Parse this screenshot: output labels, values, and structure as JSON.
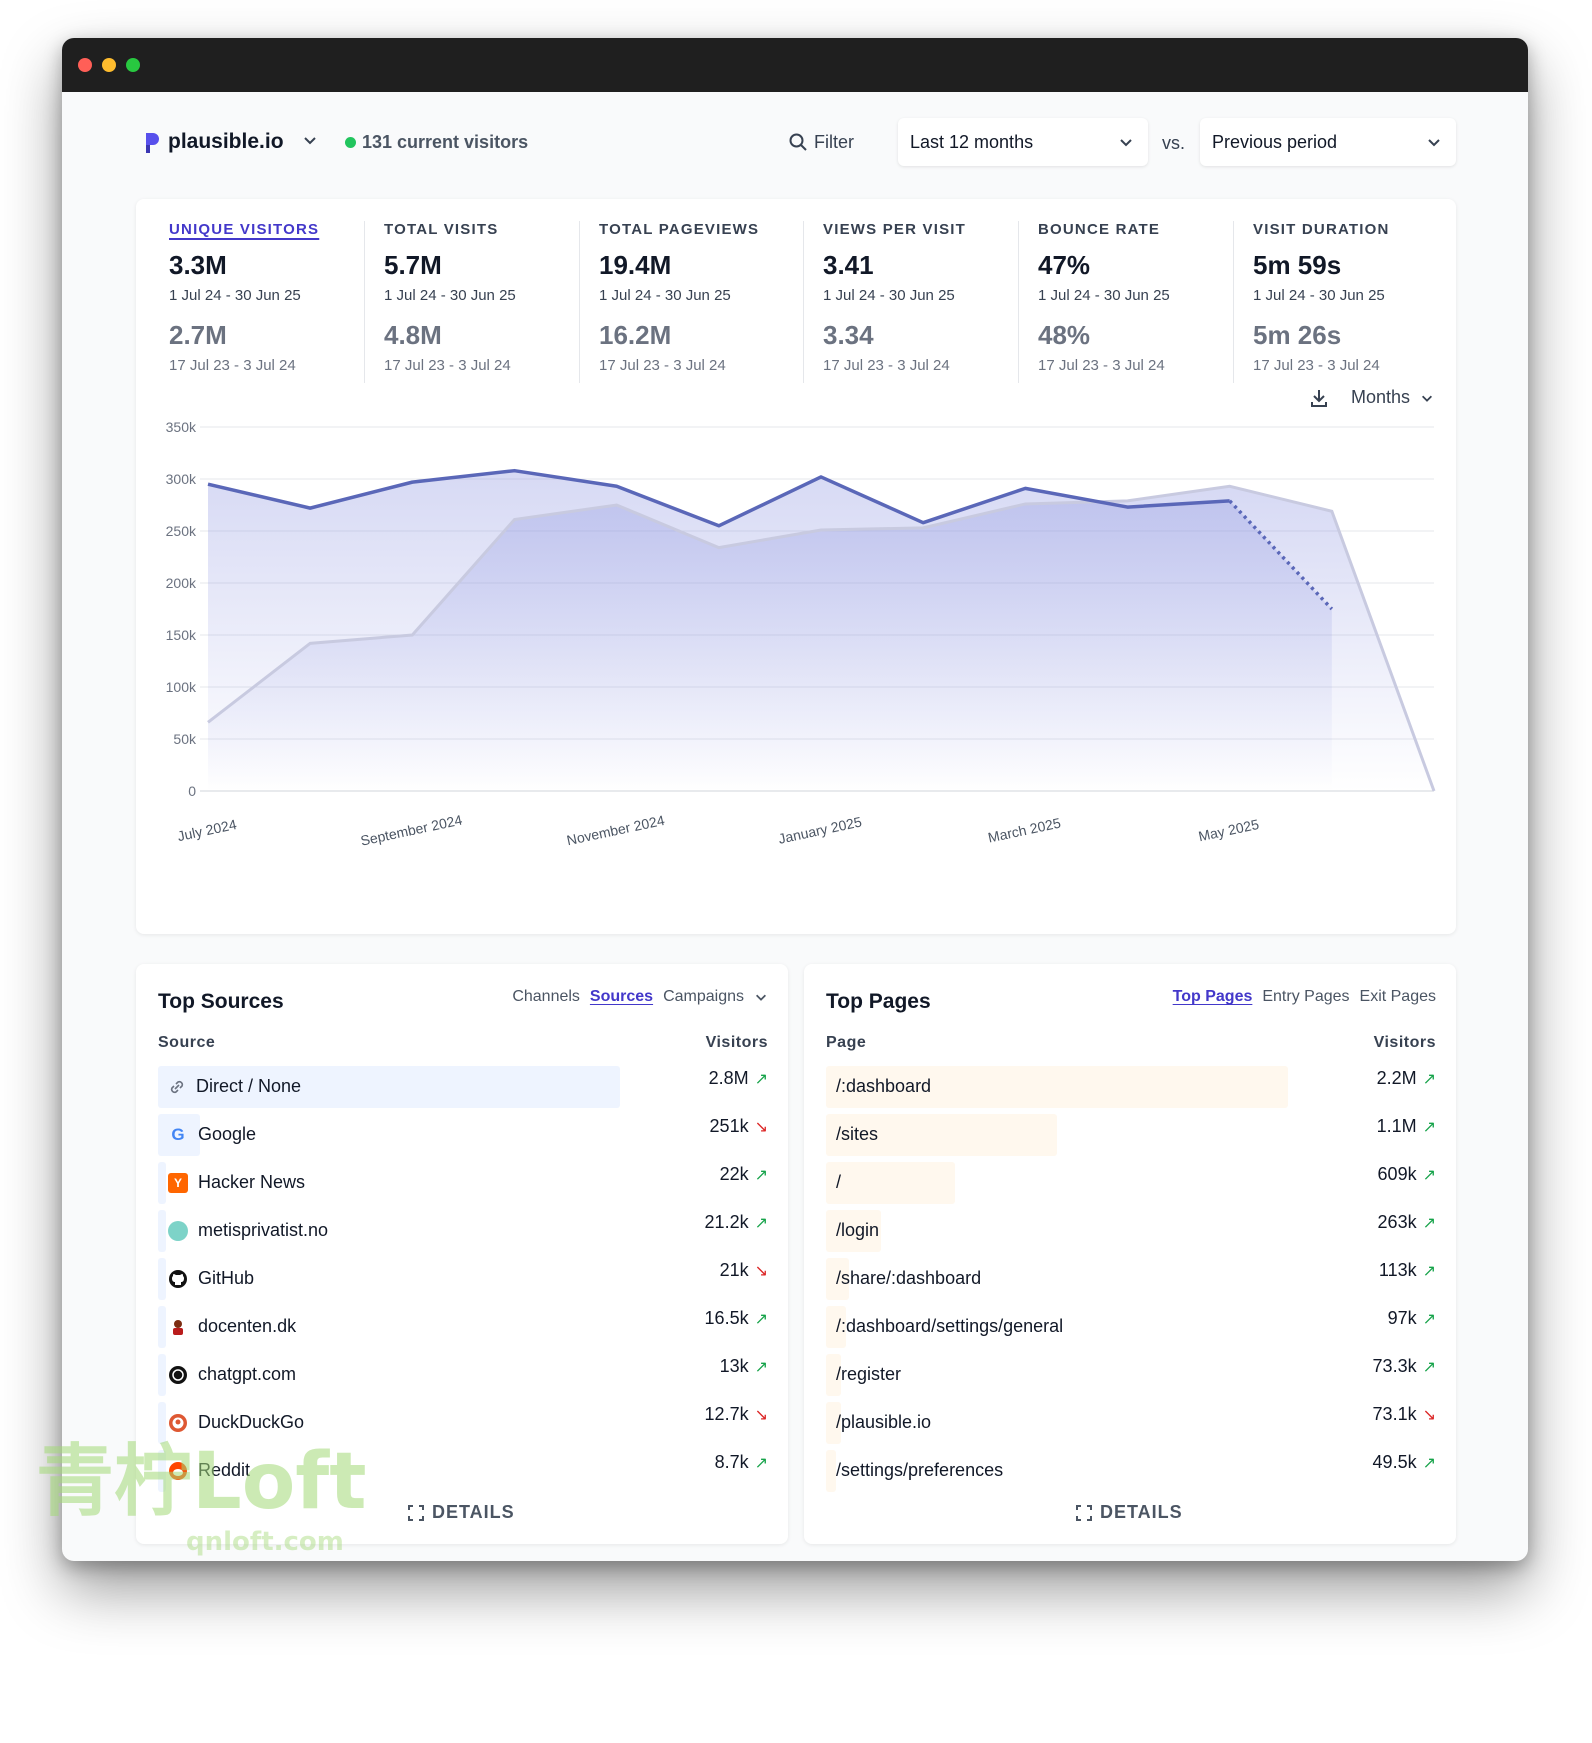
{
  "header": {
    "site_name": "plausible.io",
    "current_visitors": "131 current visitors",
    "filter_label": "Filter",
    "period": "Last 12 months",
    "vs": "vs.",
    "comparison": "Previous period"
  },
  "metrics": [
    {
      "label": "UNIQUE VISITORS",
      "value": "3.3M",
      "range": "1 Jul 24 - 30 Jun 25",
      "compare_value": "2.7M",
      "compare_range": "17 Jul 23 - 3 Jul 24"
    },
    {
      "label": "TOTAL VISITS",
      "value": "5.7M",
      "range": "1 Jul 24 - 30 Jun 25",
      "compare_value": "4.8M",
      "compare_range": "17 Jul 23 - 3 Jul 24"
    },
    {
      "label": "TOTAL PAGEVIEWS",
      "value": "19.4M",
      "range": "1 Jul 24 - 30 Jun 25",
      "compare_value": "16.2M",
      "compare_range": "17 Jul 23 - 3 Jul 24"
    },
    {
      "label": "VIEWS PER VISIT",
      "value": "3.41",
      "range": "1 Jul 24 - 30 Jun 25",
      "compare_value": "3.34",
      "compare_range": "17 Jul 23 - 3 Jul 24"
    },
    {
      "label": "BOUNCE RATE",
      "value": "47%",
      "range": "1 Jul 24 - 30 Jun 25",
      "compare_value": "48%",
      "compare_range": "17 Jul 23 - 3 Jul 24"
    },
    {
      "label": "VISIT DURATION",
      "value": "5m 59s",
      "range": "1 Jul 24 - 30 Jun 25",
      "compare_value": "5m 26s",
      "compare_range": "17 Jul 23 - 3 Jul 24"
    }
  ],
  "chart_tools": {
    "interval": "Months"
  },
  "chart_data": {
    "type": "area",
    "x": [
      "Jul 2024",
      "Aug 2024",
      "Sep 2024",
      "Oct 2024",
      "Nov 2024",
      "Dec 2024",
      "Jan 2025",
      "Feb 2025",
      "Mar 2025",
      "Apr 2025",
      "May 2025",
      "Jun 2025",
      "Jul 2025"
    ],
    "x_tick_labels": [
      "July 2024",
      "September 2024",
      "November 2024",
      "January 2025",
      "March 2025",
      "May 2025"
    ],
    "y_tick_labels": [
      "0",
      "50k",
      "100k",
      "150k",
      "200k",
      "250k",
      "300k",
      "350k"
    ],
    "ylim": [
      0,
      350000
    ],
    "series": [
      {
        "values": [
          295000,
          272000,
          297000,
          308000,
          293000,
          255000,
          302000,
          258000,
          291000,
          273000,
          279000,
          175000,
          null
        ],
        "partial_from_index": 10,
        "color": "#5a67b8"
      },
      {
        "values": [
          66000,
          142000,
          150000,
          261000,
          275000,
          234000,
          251000,
          253000,
          276000,
          279000,
          293000,
          269000,
          0
        ],
        "color": "#c8cae0"
      }
    ],
    "grid": true
  },
  "top_sources": {
    "title": "Top Sources",
    "tabs": [
      "Channels",
      "Sources",
      "Campaigns"
    ],
    "active_tab": "Sources",
    "col_source": "Source",
    "col_visitors": "Visitors",
    "rows": [
      {
        "name": "Direct / None",
        "visitors": "2.8M",
        "trend": "up",
        "icon": "link-icon",
        "share": 1.0
      },
      {
        "name": "Google",
        "visitors": "251k",
        "trend": "down",
        "icon": "google-icon",
        "share": 0.09
      },
      {
        "name": "Hacker News",
        "visitors": "22k",
        "trend": "up",
        "icon": "hackernews-icon",
        "share": 0.008
      },
      {
        "name": "metisprivatist.no",
        "visitors": "21.2k",
        "trend": "up",
        "icon": "site-favicon-icon",
        "share": 0.008
      },
      {
        "name": "GitHub",
        "visitors": "21k",
        "trend": "down",
        "icon": "github-icon",
        "share": 0.008
      },
      {
        "name": "docenten.dk",
        "visitors": "16.5k",
        "trend": "up",
        "icon": "docenten-icon",
        "share": 0.006
      },
      {
        "name": "chatgpt.com",
        "visitors": "13k",
        "trend": "up",
        "icon": "chatgpt-icon",
        "share": 0.005
      },
      {
        "name": "DuckDuckGo",
        "visitors": "12.7k",
        "trend": "down",
        "icon": "duckduckgo-icon",
        "share": 0.005
      },
      {
        "name": "Reddit",
        "visitors": "8.7k",
        "trend": "up",
        "icon": "reddit-icon",
        "share": 0.003
      }
    ],
    "details": "DETAILS"
  },
  "top_pages": {
    "title": "Top Pages",
    "tabs": [
      "Top Pages",
      "Entry Pages",
      "Exit Pages"
    ],
    "active_tab": "Top Pages",
    "col_page": "Page",
    "col_visitors": "Visitors",
    "rows": [
      {
        "name": "/:dashboard",
        "visitors": "2.2M",
        "trend": "up",
        "share": 1.0
      },
      {
        "name": "/sites",
        "visitors": "1.1M",
        "trend": "up",
        "share": 0.5
      },
      {
        "name": "/",
        "visitors": "609k",
        "trend": "up",
        "share": 0.28
      },
      {
        "name": "/login",
        "visitors": "263k",
        "trend": "up",
        "share": 0.12
      },
      {
        "name": "/share/:dashboard",
        "visitors": "113k",
        "trend": "up",
        "share": 0.05
      },
      {
        "name": "/:dashboard/settings/general",
        "visitors": "97k",
        "trend": "up",
        "share": 0.044
      },
      {
        "name": "/register",
        "visitors": "73.3k",
        "trend": "up",
        "share": 0.033
      },
      {
        "name": "/plausible.io",
        "visitors": "73.1k",
        "trend": "down",
        "share": 0.033
      },
      {
        "name": "/settings/preferences",
        "visitors": "49.5k",
        "trend": "up",
        "share": 0.022
      }
    ],
    "details": "DETAILS"
  },
  "watermark": {
    "brand": "青柠Loft",
    "url": "qnloft.com"
  }
}
